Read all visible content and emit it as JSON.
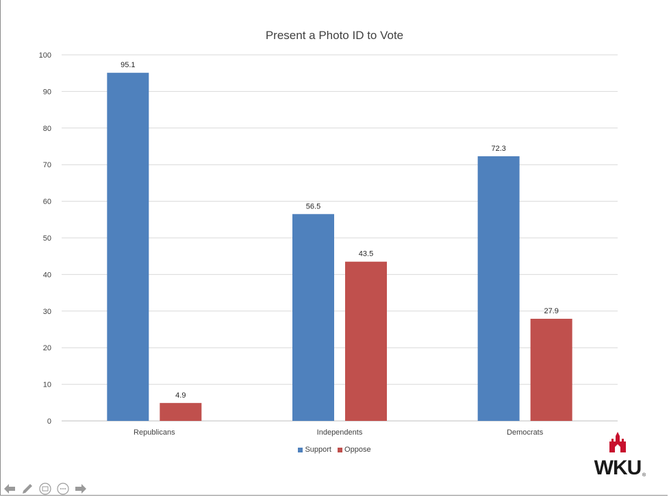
{
  "chart_data": {
    "type": "bar",
    "title": "Present a Photo ID to Vote",
    "categories": [
      "Republicans",
      "Independents",
      "Democrats"
    ],
    "series": [
      {
        "name": "Support",
        "color": "#4f81bd",
        "values": [
          95.1,
          56.5,
          72.3
        ]
      },
      {
        "name": "Oppose",
        "color": "#c0504d",
        "values": [
          4.9,
          43.5,
          27.9
        ]
      }
    ],
    "ylim": [
      0,
      100
    ],
    "yticks": [
      "0",
      "10",
      "20",
      "30",
      "40",
      "50",
      "60",
      "70",
      "80",
      "90",
      "100"
    ],
    "grid": true,
    "legend_position": "bottom"
  },
  "logo": {
    "text": "WKU",
    "mark": "®",
    "color": "#c8102e"
  },
  "nav": {
    "icons": [
      "back-arrow-icon",
      "pen-icon",
      "slides-icon",
      "more-options-icon",
      "forward-arrow-icon"
    ]
  }
}
